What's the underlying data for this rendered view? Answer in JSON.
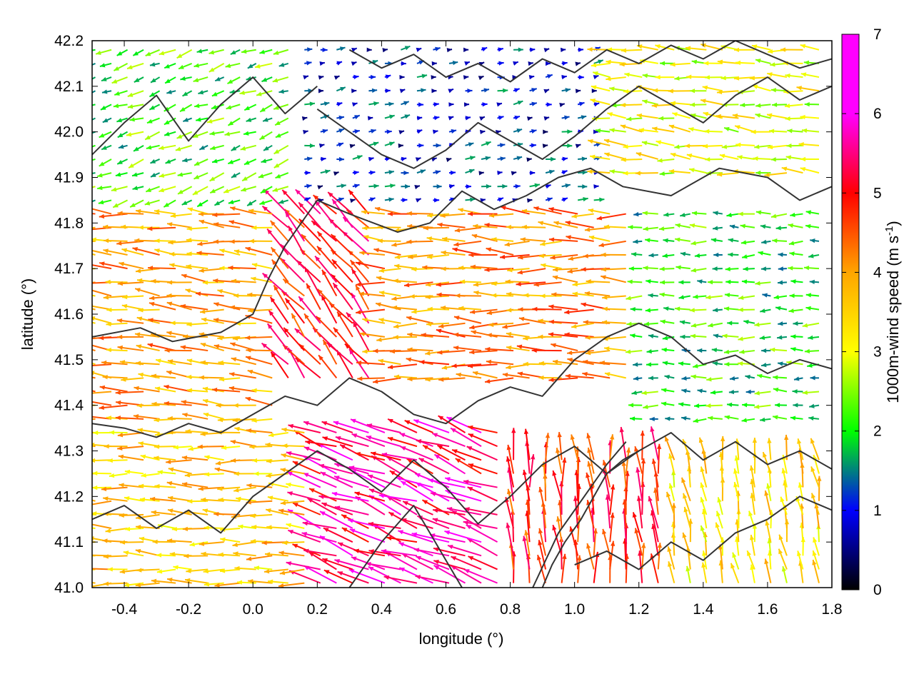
{
  "chart_data": {
    "type": "vector-field",
    "title": "",
    "xlabel": "longitude (°)",
    "ylabel": "latitude (°)",
    "xlim": [
      -0.5,
      1.8
    ],
    "ylim": [
      41.0,
      42.2
    ],
    "x_ticks": [
      {
        "value": -0.4,
        "label": "-0.4"
      },
      {
        "value": -0.2,
        "label": "-0.2"
      },
      {
        "value": 0.0,
        "label": "0.0"
      },
      {
        "value": 0.2,
        "label": "0.2"
      },
      {
        "value": 0.4,
        "label": "0.4"
      },
      {
        "value": 0.6,
        "label": "0.6"
      },
      {
        "value": 0.8,
        "label": "0.8"
      },
      {
        "value": 1.0,
        "label": "1.0"
      },
      {
        "value": 1.2,
        "label": "1.2"
      },
      {
        "value": 1.4,
        "label": "1.4"
      },
      {
        "value": 1.6,
        "label": "1.6"
      },
      {
        "value": 1.8,
        "label": "1.8"
      }
    ],
    "y_ticks": [
      {
        "value": 41.0,
        "label": "41.0"
      },
      {
        "value": 41.1,
        "label": "41.1"
      },
      {
        "value": 41.2,
        "label": "41.2"
      },
      {
        "value": 41.3,
        "label": "41.3"
      },
      {
        "value": 41.4,
        "label": "41.4"
      },
      {
        "value": 41.5,
        "label": "41.5"
      },
      {
        "value": 41.6,
        "label": "41.6"
      },
      {
        "value": 41.7,
        "label": "41.7"
      },
      {
        "value": 41.8,
        "label": "41.8"
      },
      {
        "value": 41.9,
        "label": "41.9"
      },
      {
        "value": 42.0,
        "label": "42.0"
      },
      {
        "value": 42.1,
        "label": "42.1"
      },
      {
        "value": 42.2,
        "label": "42.2"
      }
    ],
    "grid": false,
    "colorbar": {
      "label": "1000m-wind speed (m s",
      "label_superscript": "-1",
      "label_suffix": ")",
      "range": [
        0,
        7
      ],
      "ticks": [
        {
          "value": 0,
          "label": "0"
        },
        {
          "value": 1,
          "label": "1"
        },
        {
          "value": 2,
          "label": "2"
        },
        {
          "value": 3,
          "label": "3"
        },
        {
          "value": 4,
          "label": "4"
        },
        {
          "value": 5,
          "label": "5"
        },
        {
          "value": 6,
          "label": "6"
        },
        {
          "value": 7,
          "label": "7"
        }
      ],
      "colors": [
        "#000000",
        "#0000ff",
        "#00ff00",
        "#ffff00",
        "#ffa500",
        "#ff0000",
        "#ff00ff"
      ]
    },
    "wind_regions": [
      {
        "name": "northwest",
        "lon": [
          -0.5,
          0.15
        ],
        "lat": [
          41.85,
          42.2
        ],
        "speed": 2.5,
        "dir_deg": 200
      },
      {
        "name": "north-central",
        "lon": [
          0.15,
          1.1
        ],
        "lat": [
          41.85,
          42.2
        ],
        "speed": 1.2,
        "dir_deg": 10
      },
      {
        "name": "northeast",
        "lon": [
          1.1,
          1.8
        ],
        "lat": [
          41.9,
          42.2
        ],
        "speed": 3.5,
        "dir_deg": 175
      },
      {
        "name": "west",
        "lon": [
          -0.5,
          0.1
        ],
        "lat": [
          41.35,
          41.85
        ],
        "speed": 4.6,
        "dir_deg": 175
      },
      {
        "name": "central",
        "lon": [
          0.1,
          0.4
        ],
        "lat": [
          41.45,
          41.9
        ],
        "speed": 5.8,
        "dir_deg": 130
      },
      {
        "name": "center-east",
        "lon": [
          0.4,
          1.2
        ],
        "lat": [
          41.45,
          41.85
        ],
        "speed": 4.8,
        "dir_deg": 178
      },
      {
        "name": "east",
        "lon": [
          1.2,
          1.8
        ],
        "lat": [
          41.35,
          41.85
        ],
        "speed": 2.4,
        "dir_deg": 180
      },
      {
        "name": "southwest",
        "lon": [
          -0.5,
          0.2
        ],
        "lat": [
          41.0,
          41.35
        ],
        "speed": 4.2,
        "dir_deg": 178
      },
      {
        "name": "south-central",
        "lon": [
          0.2,
          0.8
        ],
        "lat": [
          41.0,
          41.35
        ],
        "speed": 6.4,
        "dir_deg": 160
      },
      {
        "name": "southeast",
        "lon": [
          0.8,
          1.3
        ],
        "lat": [
          41.0,
          41.3
        ],
        "speed": 5.6,
        "dir_deg": 95
      },
      {
        "name": "far-southeast",
        "lon": [
          1.3,
          1.8
        ],
        "lat": [
          41.0,
          41.3
        ],
        "speed": 4.0,
        "dir_deg": 100
      }
    ],
    "contours": [
      {
        "lon": [
          -0.5,
          -0.35,
          -0.25,
          -0.1,
          0.0,
          0.05,
          0.1,
          0.2,
          0.3,
          0.45,
          0.55,
          0.65,
          0.75,
          0.85,
          0.95,
          1.05,
          1.15,
          1.3,
          1.45,
          1.6,
          1.7,
          1.8
        ],
        "lat": [
          41.55,
          41.57,
          41.54,
          41.56,
          41.6,
          41.68,
          41.75,
          41.85,
          41.82,
          41.78,
          41.8,
          41.87,
          41.83,
          41.86,
          41.9,
          41.92,
          41.88,
          41.86,
          41.92,
          41.9,
          41.85,
          41.88
        ]
      },
      {
        "lon": [
          -0.5,
          -0.4,
          -0.3,
          -0.2,
          -0.1,
          0.0,
          0.1,
          0.2,
          0.3,
          0.4,
          0.5,
          0.6,
          0.7,
          0.8,
          0.9,
          1.0,
          1.1,
          1.2,
          1.3,
          1.4,
          1.5,
          1.6,
          1.7,
          1.8
        ],
        "lat": [
          41.36,
          41.35,
          41.33,
          41.36,
          41.34,
          41.38,
          41.42,
          41.4,
          41.46,
          41.43,
          41.38,
          41.36,
          41.41,
          41.44,
          41.42,
          41.5,
          41.55,
          41.58,
          41.55,
          41.49,
          41.51,
          41.47,
          41.5,
          41.48
        ]
      },
      {
        "lon": [
          -0.5,
          -0.4,
          -0.3,
          -0.2,
          -0.1,
          0.0,
          0.1,
          0.2,
          0.3,
          0.4,
          0.5,
          0.6,
          0.7,
          0.8,
          0.9,
          1.0,
          1.1,
          1.2,
          1.3,
          1.4,
          1.5,
          1.6,
          1.7,
          1.8
        ],
        "lat": [
          41.15,
          41.18,
          41.13,
          41.17,
          41.12,
          41.2,
          41.25,
          41.3,
          41.26,
          41.21,
          41.28,
          41.22,
          41.14,
          41.2,
          41.27,
          41.31,
          41.25,
          41.3,
          41.34,
          41.28,
          41.32,
          41.27,
          41.3,
          41.26
        ]
      },
      {
        "lon": [
          0.2,
          0.3,
          0.4,
          0.5,
          0.6,
          0.7,
          0.8,
          0.9,
          1.0,
          1.1,
          1.2,
          1.3,
          1.4,
          1.5,
          1.6,
          1.7,
          1.8
        ],
        "lat": [
          42.05,
          42.0,
          41.95,
          41.92,
          41.96,
          42.02,
          41.98,
          41.94,
          41.99,
          42.05,
          42.1,
          42.06,
          42.02,
          42.08,
          42.12,
          42.07,
          42.1
        ]
      },
      {
        "lon": [
          0.3,
          0.4,
          0.5,
          0.6,
          0.7,
          0.8,
          0.9,
          1.0,
          1.1,
          1.2,
          1.3,
          1.4,
          1.5,
          1.6,
          1.7,
          1.8
        ],
        "lat": [
          42.18,
          42.14,
          42.17,
          42.12,
          42.15,
          42.11,
          42.16,
          42.13,
          42.18,
          42.15,
          42.19,
          42.16,
          42.2,
          42.17,
          42.14,
          42.16
        ]
      },
      {
        "lon": [
          -0.5,
          -0.4,
          -0.3,
          -0.2,
          -0.1,
          0.0,
          0.1,
          0.2
        ],
        "lat": [
          41.95,
          42.02,
          42.08,
          41.98,
          42.06,
          42.12,
          42.04,
          42.1
        ]
      },
      {
        "lon": [
          0.9,
          0.93,
          0.97,
          1.02,
          1.06,
          1.1,
          1.15,
          1.2
        ],
        "lat": [
          41.0,
          41.05,
          41.1,
          41.15,
          41.2,
          41.25,
          41.28,
          41.3
        ]
      },
      {
        "lon": [
          0.87,
          0.91,
          0.95,
          1.0,
          1.05,
          1.1,
          1.16
        ],
        "lat": [
          41.0,
          41.06,
          41.12,
          41.17,
          41.22,
          41.27,
          41.32
        ]
      },
      {
        "lon": [
          0.3,
          0.35,
          0.4,
          0.45,
          0.5,
          0.55,
          0.6,
          0.65
        ],
        "lat": [
          41.0,
          41.05,
          41.1,
          41.14,
          41.18,
          41.12,
          41.06,
          41.0
        ]
      },
      {
        "lon": [
          1.0,
          1.1,
          1.2,
          1.3,
          1.4,
          1.5,
          1.6,
          1.7,
          1.8
        ],
        "lat": [
          41.05,
          41.08,
          41.04,
          41.1,
          41.06,
          41.12,
          41.15,
          41.2,
          41.17
        ]
      }
    ]
  }
}
